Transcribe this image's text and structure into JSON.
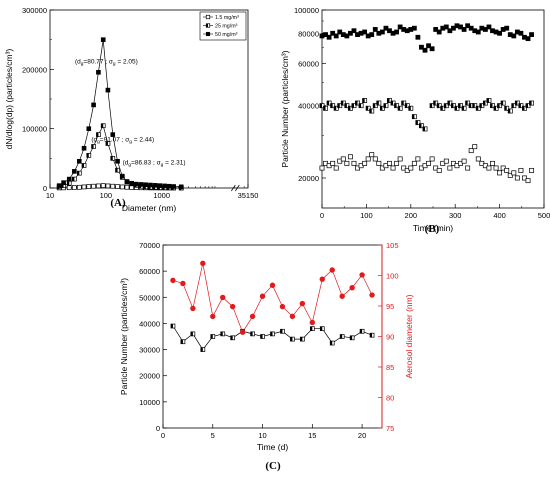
{
  "chart_data": [
    {
      "id": "A",
      "type": "line",
      "panel_label": "(A)",
      "xscale": "log",
      "xlim": [
        10,
        35150
      ],
      "ylim": [
        0,
        300000
      ],
      "xlabel": "Diameter (nm)",
      "ylabel": "dN/dlog(dp) (particles/cm³)",
      "xticks": [
        10,
        100,
        1000,
        35150
      ],
      "xtick_labels": [
        "10",
        "100",
        "1000",
        "35150"
      ],
      "yticks": [
        0,
        100000,
        200000,
        300000
      ],
      "ytick_labels": [
        "0",
        "100000",
        "200000",
        "300000"
      ],
      "legend_position": "top-right",
      "series": [
        {
          "name": "1.5 mg/m³",
          "marker": "open-square",
          "x": [
            14.6,
            17.5,
            22.1,
            27.3,
            33.5,
            40.7,
            49.5,
            60.3,
            73.7,
            89.8,
            109,
            133,
            162,
            197,
            239,
            290,
            352,
            428,
            519,
            630,
            765,
            929,
            1128,
            1360,
            1640,
            2240
          ],
          "values": [
            200,
            300,
            500,
            800,
            1200,
            1800,
            2400,
            3000,
            3500,
            4000,
            3500,
            3000,
            2400,
            1800,
            1300,
            900,
            600,
            400,
            300,
            200,
            150,
            100,
            80,
            60,
            50,
            40
          ]
        },
        {
          "name": "25 mg/m³",
          "marker": "half-filled-square",
          "x": [
            14.6,
            17.5,
            22.1,
            27.3,
            33.5,
            40.7,
            49.5,
            60.3,
            73.7,
            89.8,
            109,
            133,
            162,
            197,
            239,
            290,
            352,
            428,
            519,
            630,
            765,
            929,
            1128,
            1360,
            1640,
            2240
          ],
          "values": [
            2000,
            4000,
            8000,
            15000,
            25000,
            38000,
            55000,
            70000,
            90000,
            105000,
            75000,
            50000,
            30000,
            18000,
            11000,
            7000,
            4500,
            3000,
            2000,
            1400,
            1000,
            700,
            500,
            300,
            200,
            100
          ]
        },
        {
          "name": "50 mg/m³",
          "marker": "filled-square",
          "x": [
            14.6,
            17.5,
            22.1,
            27.3,
            33.5,
            40.7,
            49.5,
            60.3,
            73.7,
            89.8,
            109,
            133,
            162,
            197,
            239,
            290,
            352,
            428,
            519,
            630,
            765,
            929,
            1128,
            1360,
            1640,
            2240
          ],
          "values": [
            4000,
            9000,
            15000,
            28000,
            45000,
            67000,
            100000,
            140000,
            195000,
            250000,
            165000,
            90000,
            45000,
            20000,
            10000,
            8000,
            6500,
            6000,
            5500,
            5000,
            4500,
            4000,
            3500,
            3000,
            2500,
            2000
          ]
        }
      ],
      "annotations": [
        {
          "text": "(d",
          "sub1": "g",
          "text2": "=80.77 ; σ",
          "sub2": "g",
          "text3": " = 2.05)",
          "x": 28,
          "y": 210000
        },
        {
          "text": "(d",
          "sub1": "g",
          "text2": "=91.07 ; σ",
          "sub2": "g",
          "text3": " = 2.44)",
          "x": 55,
          "y": 78000
        },
        {
          "text": "(d",
          "sub1": "g",
          "text2": "=86.83 ; σ",
          "sub2": "g",
          "text3": " = 2.31)",
          "x": 200,
          "y": 40000
        }
      ]
    },
    {
      "id": "B",
      "type": "scatter",
      "panel_label": "(B)",
      "yscale": "log",
      "xlim": [
        0,
        500
      ],
      "ylim": [
        15000,
        100000
      ],
      "xlabel": "Time (min)",
      "ylabel": "Particle Number (particles/cm³)",
      "xticks": [
        0,
        100,
        200,
        300,
        400,
        500
      ],
      "xtick_labels": [
        "0",
        "100",
        "200",
        "300",
        "400",
        "500"
      ],
      "yticks": [
        20000,
        40000,
        60000,
        80000,
        100000
      ],
      "ytick_labels": [
        "20000",
        "40000",
        "60000",
        "80000",
        "100000"
      ],
      "series": [
        {
          "marker": "filled-square",
          "x": [
            0,
            8,
            16,
            24,
            32,
            40,
            48,
            56,
            64,
            72,
            80,
            88,
            96,
            104,
            112,
            120,
            128,
            136,
            144,
            152,
            160,
            168,
            176,
            184,
            192,
            200,
            208,
            216,
            224,
            232,
            240,
            248,
            256,
            264,
            272,
            280,
            288,
            296,
            304,
            312,
            320,
            328,
            336,
            344,
            352,
            360,
            368,
            376,
            384,
            392,
            400,
            408,
            416,
            424,
            432,
            440,
            448,
            456,
            464,
            472
          ],
          "values": [
            78000,
            79000,
            77000,
            80000,
            78000,
            81000,
            79000,
            78000,
            80000,
            82000,
            79000,
            80000,
            81000,
            78000,
            79000,
            83000,
            80000,
            81000,
            84000,
            82000,
            80000,
            81000,
            85000,
            83000,
            82000,
            83000,
            84000,
            77000,
            70000,
            68000,
            71000,
            69000,
            83000,
            81000,
            84000,
            85000,
            82000,
            84000,
            86000,
            85000,
            83000,
            86000,
            84000,
            82000,
            81000,
            84000,
            83000,
            85000,
            82000,
            81000,
            80000,
            83000,
            84000,
            79000,
            78000,
            81000,
            80000,
            77000,
            76000,
            79000
          ]
        },
        {
          "marker": "half-filled-square",
          "x": [
            0,
            8,
            16,
            24,
            32,
            40,
            48,
            56,
            64,
            72,
            80,
            88,
            96,
            104,
            112,
            120,
            128,
            136,
            144,
            152,
            160,
            168,
            176,
            184,
            192,
            200,
            208,
            216,
            224,
            232,
            248,
            256,
            264,
            272,
            280,
            288,
            296,
            304,
            312,
            320,
            328,
            336,
            344,
            352,
            360,
            368,
            376,
            384,
            392,
            400,
            408,
            416,
            424,
            432,
            440,
            448,
            456,
            464,
            472
          ],
          "values": [
            40000,
            39000,
            41000,
            40000,
            39000,
            40000,
            41000,
            40000,
            39000,
            40000,
            41000,
            40000,
            42000,
            39000,
            38000,
            40000,
            41000,
            39000,
            40000,
            42000,
            41000,
            40000,
            39000,
            41000,
            40000,
            39000,
            36000,
            34000,
            33000,
            32000,
            40000,
            41000,
            40000,
            39000,
            40000,
            41000,
            40000,
            39000,
            40000,
            39000,
            41000,
            40000,
            40000,
            39000,
            40000,
            41000,
            42000,
            40000,
            39000,
            40000,
            41000,
            39000,
            38000,
            40000,
            41000,
            40000,
            39000,
            40000,
            41000
          ]
        },
        {
          "marker": "open-square",
          "x": [
            0,
            8,
            16,
            24,
            32,
            40,
            48,
            56,
            64,
            72,
            80,
            88,
            96,
            104,
            112,
            120,
            128,
            136,
            144,
            152,
            160,
            168,
            176,
            184,
            192,
            200,
            208,
            216,
            224,
            232,
            240,
            248,
            256,
            264,
            272,
            280,
            288,
            296,
            304,
            312,
            320,
            328,
            336,
            344,
            352,
            360,
            368,
            376,
            384,
            392,
            400,
            408,
            416,
            424,
            432,
            440,
            448,
            456,
            464,
            472
          ],
          "values": [
            22000,
            23000,
            22500,
            23000,
            22000,
            23500,
            24000,
            23000,
            24500,
            23000,
            22000,
            22500,
            23000,
            24000,
            25000,
            24000,
            23000,
            22000,
            22500,
            23000,
            22000,
            23000,
            24000,
            22000,
            21500,
            22000,
            23000,
            24000,
            22000,
            22500,
            23000,
            24000,
            22000,
            21500,
            23000,
            23500,
            22000,
            23000,
            22500,
            23000,
            23500,
            22000,
            26000,
            27000,
            24000,
            23000,
            22500,
            22000,
            23000,
            22000,
            21000,
            22000,
            21500,
            20500,
            21000,
            20000,
            21500,
            20000,
            19500,
            21500
          ]
        }
      ]
    },
    {
      "id": "C",
      "type": "line",
      "panel_label": "(C)",
      "xlim": [
        0,
        22
      ],
      "ylim": [
        0,
        70000
      ],
      "y2lim": [
        75,
        105
      ],
      "xlabel": "Time (d)",
      "ylabel": "Particle Number (particles/cm³)",
      "y2label": "Aerosol diameter (nm)",
      "xticks": [
        0,
        5,
        10,
        15,
        20
      ],
      "xtick_labels": [
        "0",
        "5",
        "10",
        "15",
        "20"
      ],
      "yticks": [
        0,
        10000,
        20000,
        30000,
        40000,
        50000,
        60000,
        70000
      ],
      "ytick_labels": [
        "0",
        "10000",
        "20000",
        "30000",
        "40000",
        "50000",
        "60000",
        "70000"
      ],
      "y2ticks": [
        75,
        80,
        85,
        90,
        95,
        100,
        105
      ],
      "y2tick_labels": [
        "75",
        "80",
        "85",
        "90",
        "95",
        "100",
        "105"
      ],
      "series": [
        {
          "axis": "left",
          "marker": "half-filled-square",
          "color": "#000000",
          "x": [
            1,
            2,
            3,
            4,
            5,
            6,
            7,
            8,
            9,
            10,
            11,
            12,
            13,
            14,
            15,
            16,
            17,
            18,
            19,
            20,
            21
          ],
          "values": [
            39000,
            33000,
            36000,
            30000,
            35000,
            36000,
            34500,
            37000,
            36000,
            35000,
            36000,
            37000,
            34000,
            34000,
            38000,
            38000,
            32500,
            35000,
            34500,
            37000,
            35500
          ]
        },
        {
          "axis": "right",
          "marker": "filled-circle",
          "color": "#e31a1c",
          "x": [
            1,
            2,
            3,
            4,
            5,
            6,
            7,
            8,
            9,
            10,
            11,
            12,
            13,
            14,
            15,
            16,
            17,
            18,
            19,
            20,
            21
          ],
          "values": [
            99.2,
            98.7,
            94.6,
            102.0,
            93.3,
            96.4,
            94.9,
            90.7,
            93.3,
            96.6,
            98.4,
            94.9,
            93.3,
            95.4,
            92.3,
            99.4,
            100.9,
            96.6,
            98.0,
            100.1,
            96.8
          ]
        }
      ]
    }
  ]
}
